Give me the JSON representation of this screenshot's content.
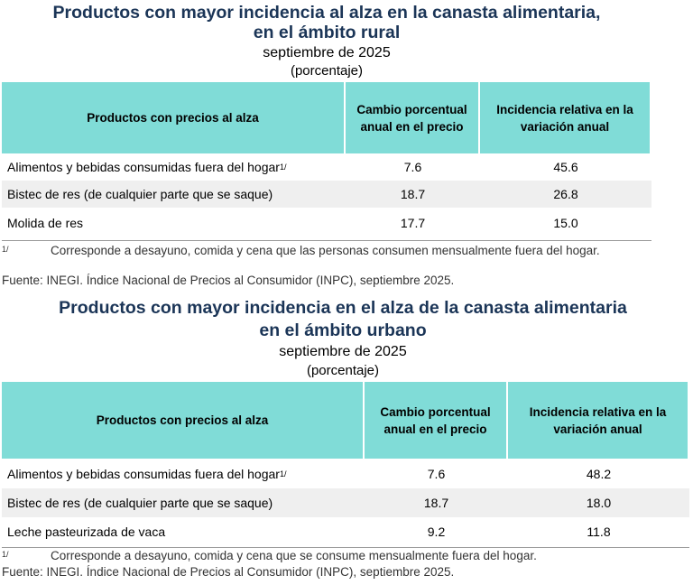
{
  "tables": [
    {
      "title": [
        "Productos con mayor incidencia al alza en la canasta alimentaria,",
        "en el ámbito rural"
      ],
      "subtitle": "septiembre de 2025",
      "unit": "(porcentaje)",
      "headers": [
        "Productos con precios al alza",
        "Cambio porcentual anual en el precio",
        "Incidencia relativa en la variación anual"
      ],
      "rows": [
        {
          "product": "Alimentos y bebidas consumidas fuera del hogar",
          "note": "1/",
          "change": "7.6",
          "incidence": "45.6"
        },
        {
          "product": "Bistec de res (de cualquier parte que se saque)",
          "change": "18.7",
          "incidence": "26.8"
        },
        {
          "product": "Molida de res",
          "change": "17.7",
          "incidence": "15.0"
        }
      ],
      "footnote": {
        "mark": "1/",
        "text": "Corresponde a desayuno, comida y cena que las personas consumen mensualmente fuera del hogar."
      },
      "source": {
        "label": "Fuente:",
        "text": "INEGI. Índice Nacional de Precios al Consumidor (INPC), septiembre 2025."
      }
    },
    {
      "title": [
        "Productos con mayor incidencia en el alza de la canasta alimentaria",
        "en el ámbito urbano"
      ],
      "subtitle": "septiembre de 2025",
      "unit": "(porcentaje)",
      "headers": [
        "Productos con precios al alza",
        "Cambio porcentual anual en el precio",
        "Incidencia relativa en la variación anual"
      ],
      "rows": [
        {
          "product": "Alimentos y bebidas consumidas fuera del hogar",
          "note": "1/",
          "change": "7.6",
          "incidence": "48.2"
        },
        {
          "product": "Bistec de res (de cualquier parte que se saque)",
          "change": "18.7",
          "incidence": "18.0"
        },
        {
          "product": "Leche pasteurizada de vaca",
          "change": "9.2",
          "incidence": "11.8"
        }
      ],
      "footnote": {
        "mark": "1/",
        "text": "Corresponde a desayuno, comida y cena que se consume mensualmente fuera del hogar."
      },
      "source": {
        "label": "Fuente:",
        "text": "INEGI. Índice Nacional de Precios al Consumidor (INPC), septiembre 2025."
      }
    }
  ]
}
